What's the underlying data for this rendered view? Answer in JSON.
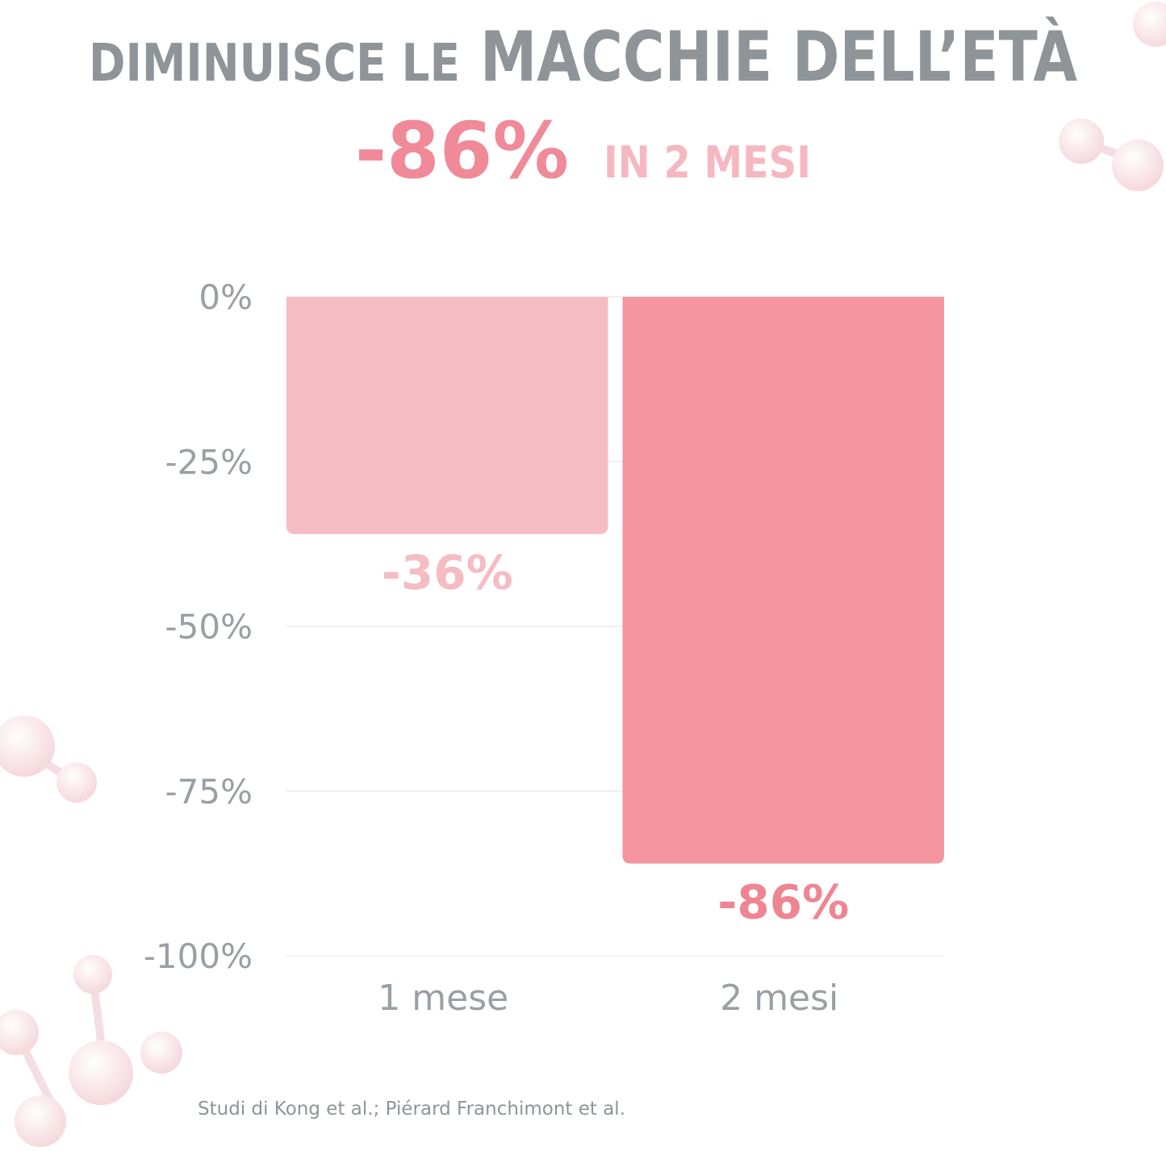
{
  "chart_data": {
    "type": "bar",
    "title_parts": [
      "DIMINUISCE LE",
      "MACCHIE DELL’ETÀ"
    ],
    "subtitle_parts": [
      "-86%",
      "IN 2 MESI"
    ],
    "categories": [
      "1 mese",
      "2 mesi"
    ],
    "values": [
      -36,
      -86
    ],
    "value_labels": [
      "-36%",
      "-86%"
    ],
    "colors": [
      "#f6bcc3",
      "#f4959f"
    ],
    "label_colors": [
      "#f5bcc3",
      "#ef8591"
    ],
    "ylim": [
      -100,
      0
    ],
    "yticks": [
      {
        "value": 0,
        "label": "0%"
      },
      {
        "value": -25,
        "label": "-25%"
      },
      {
        "value": -50,
        "label": "-50%"
      },
      {
        "value": -75,
        "label": "-75%"
      },
      {
        "value": -100,
        "label": "-100%"
      }
    ],
    "grid": true,
    "source": "Studi di Kong et al.; Piérard Franchimont et al."
  }
}
